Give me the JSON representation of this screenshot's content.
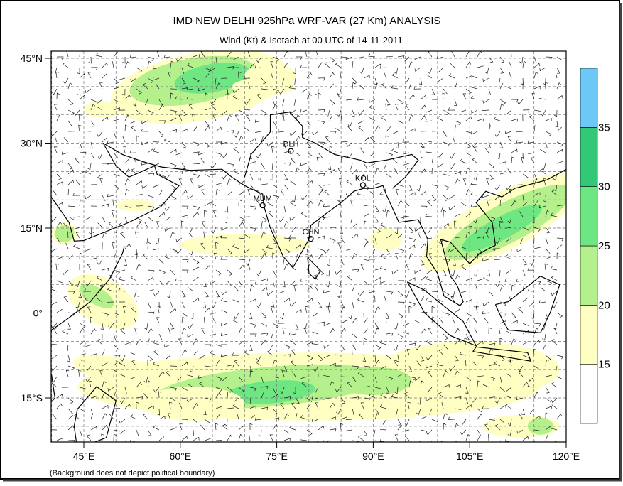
{
  "header": {
    "title": "IMD NEW DELHI 925hPa WRF-VAR (27 Km) ANALYSIS",
    "subtitle": "Wind (Kt) & Isotach at 00 UTC of 14-11-2011"
  },
  "map": {
    "lat_labels": [
      "45°N",
      "30°N",
      "15°N",
      "0°",
      "15°S"
    ],
    "lon_labels": [
      "45°E",
      "60°E",
      "75°E",
      "90°E",
      "105°E",
      "120°E"
    ],
    "cities": [
      "DLH",
      "KOL",
      "MUM",
      "CHN"
    ]
  },
  "colorbar": {
    "labels": [
      "15",
      "20",
      "25",
      "30",
      "35"
    ],
    "colors": [
      "#ffffff",
      "#ffffc4",
      "#b4f08c",
      "#6ee682",
      "#32c878",
      "#6ec8f5"
    ]
  },
  "footer": "(Background does not depict political boundary)"
}
